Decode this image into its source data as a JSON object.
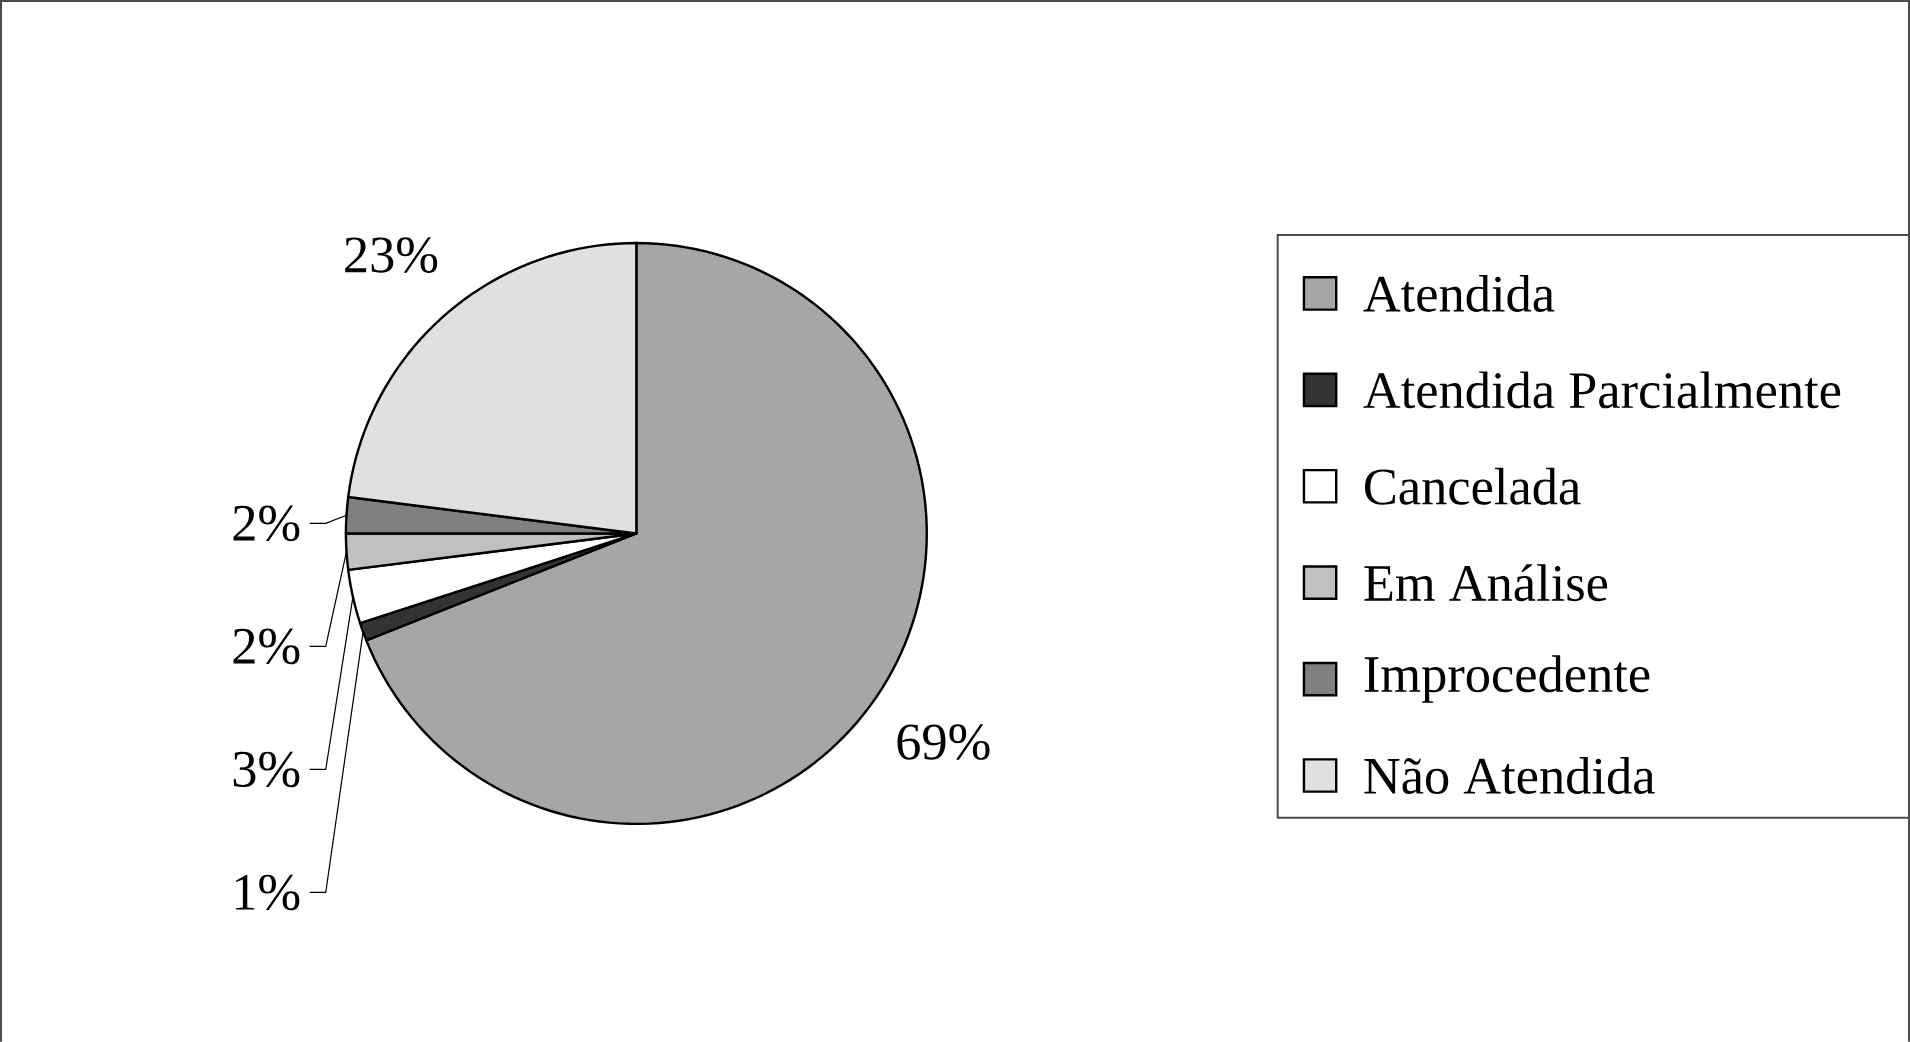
{
  "chart_data": {
    "type": "pie",
    "categories": [
      "Atendida",
      "Atendida Parcialmente",
      "Cancelada",
      "Em Análise",
      "Improcedente",
      "Não Atendida"
    ],
    "values": [
      69,
      1,
      3,
      2,
      2,
      23
    ],
    "colors": [
      "#a6a6a6",
      "#333333",
      "#ffffff",
      "#c0c0c0",
      "#808080",
      "#e0e0e0"
    ],
    "value_labels": [
      "69%",
      "1%",
      "3%",
      "2%",
      "2%",
      "23%"
    ],
    "legend": "right"
  }
}
